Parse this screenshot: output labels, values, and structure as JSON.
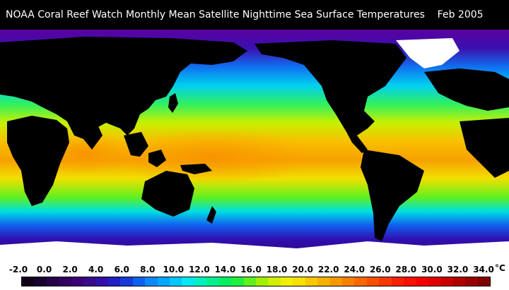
{
  "title": "NOAA Coral Reef Watch Monthly Mean Satellite Nighttime Sea Surface Temperatures    Feb 2005",
  "legend": {
    "unit": "°C",
    "ticks": [
      "-2.0",
      "0.0",
      "2.0",
      "4.0",
      "6.0",
      "8.0",
      "10.0",
      "12.0",
      "14.0",
      "16.0",
      "18.0",
      "20.0",
      "22.0",
      "24.0",
      "26.0",
      "28.0",
      "30.0",
      "32.0",
      "34.0"
    ],
    "colors": [
      "#100018",
      "#1a0030",
      "#280048",
      "#33005e",
      "#3c0076",
      "#3a0a8c",
      "#3010a6",
      "#2020c4",
      "#1838dc",
      "#1060f0",
      "#0c88f8",
      "#00a8ff",
      "#00c8ff",
      "#00e8f0",
      "#00f0c0",
      "#00f090",
      "#00f060",
      "#20f040",
      "#60f020",
      "#a0f000",
      "#d0f000",
      "#f0f000",
      "#f8e000",
      "#f8c800",
      "#f8b000",
      "#f89800",
      "#f88000",
      "#f86800",
      "#f85000",
      "#f83800",
      "#f82000",
      "#f81000",
      "#f80000",
      "#e00000",
      "#c80000",
      "#b00000",
      "#980000",
      "#800000"
    ]
  },
  "map": {
    "land_color": "#000000",
    "ice_color": "#ffffff",
    "sst_gradient": [
      "#2a0070",
      "#3010b0",
      "#1060f0",
      "#00c8ff",
      "#00f090",
      "#a0f000",
      "#f0f000",
      "#f8b000",
      "#f88000"
    ]
  }
}
